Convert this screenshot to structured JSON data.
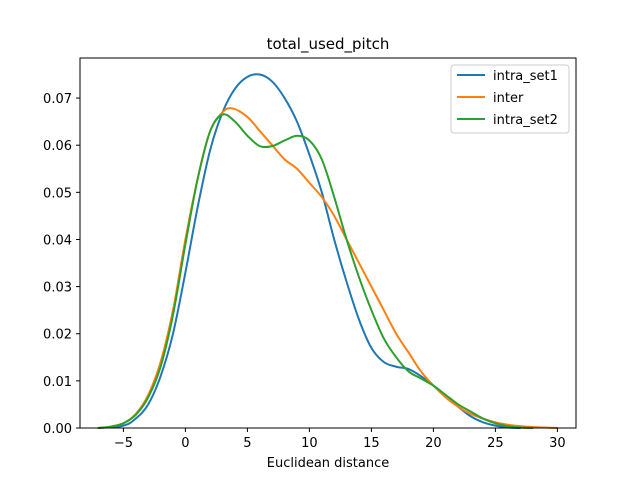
{
  "chart_data": {
    "type": "line",
    "title": "total_used_pitch",
    "xlabel": "Euclidean distance",
    "ylabel": "",
    "xlim": [
      -8.5,
      31.5
    ],
    "ylim": [
      0.0,
      0.0785
    ],
    "xticks": [
      -5,
      0,
      5,
      10,
      15,
      20,
      25,
      30
    ],
    "xtick_labels": [
      "−5",
      "0",
      "5",
      "10",
      "15",
      "20",
      "25",
      "30"
    ],
    "yticks": [
      0.0,
      0.01,
      0.02,
      0.03,
      0.04,
      0.05,
      0.06,
      0.07
    ],
    "ytick_labels": [
      "0.00",
      "0.01",
      "0.02",
      "0.03",
      "0.04",
      "0.05",
      "0.06",
      "0.07"
    ],
    "grid": false,
    "legend_position": "top-right",
    "series": [
      {
        "name": "intra_set1",
        "color": "#1f77b4",
        "points": [
          [
            -7,
            0.0
          ],
          [
            -5,
            0.0005
          ],
          [
            -4,
            0.002
          ],
          [
            -3,
            0.005
          ],
          [
            -2,
            0.011
          ],
          [
            -1,
            0.02
          ],
          [
            0,
            0.033
          ],
          [
            1,
            0.047
          ],
          [
            2,
            0.059
          ],
          [
            3,
            0.067
          ],
          [
            4,
            0.072
          ],
          [
            5,
            0.0745
          ],
          [
            6,
            0.075
          ],
          [
            7,
            0.0735
          ],
          [
            8,
            0.07
          ],
          [
            9,
            0.065
          ],
          [
            10,
            0.058
          ],
          [
            11,
            0.05
          ],
          [
            12,
            0.04
          ],
          [
            13,
            0.031
          ],
          [
            14,
            0.023
          ],
          [
            15,
            0.017
          ],
          [
            16,
            0.014
          ],
          [
            17,
            0.013
          ],
          [
            18,
            0.0125
          ],
          [
            19,
            0.011
          ],
          [
            20,
            0.009
          ],
          [
            21,
            0.0065
          ],
          [
            22,
            0.0045
          ],
          [
            23,
            0.0025
          ],
          [
            24,
            0.0012
          ],
          [
            25,
            0.0005
          ],
          [
            26,
            0.0001
          ],
          [
            27,
            0.0
          ]
        ]
      },
      {
        "name": "inter",
        "color": "#ff7f0e",
        "points": [
          [
            -7,
            0.0
          ],
          [
            -6,
            0.0003
          ],
          [
            -5,
            0.001
          ],
          [
            -4,
            0.003
          ],
          [
            -3,
            0.007
          ],
          [
            -2,
            0.014
          ],
          [
            -1,
            0.025
          ],
          [
            0,
            0.04
          ],
          [
            1,
            0.053
          ],
          [
            2,
            0.063
          ],
          [
            3,
            0.067
          ],
          [
            3.8,
            0.0678
          ],
          [
            5,
            0.066
          ],
          [
            6,
            0.063
          ],
          [
            7,
            0.06
          ],
          [
            8,
            0.057
          ],
          [
            9,
            0.055
          ],
          [
            10,
            0.052
          ],
          [
            11,
            0.049
          ],
          [
            12,
            0.045
          ],
          [
            13,
            0.04
          ],
          [
            14,
            0.035
          ],
          [
            15,
            0.03
          ],
          [
            16,
            0.025
          ],
          [
            17,
            0.02
          ],
          [
            18,
            0.016
          ],
          [
            19,
            0.012
          ],
          [
            20,
            0.009
          ],
          [
            21,
            0.0065
          ],
          [
            22,
            0.0045
          ],
          [
            23,
            0.003
          ],
          [
            24,
            0.002
          ],
          [
            25,
            0.0012
          ],
          [
            26,
            0.0007
          ],
          [
            27,
            0.0004
          ],
          [
            28,
            0.0002
          ],
          [
            29,
            0.0001
          ],
          [
            30,
            0.0
          ]
        ]
      },
      {
        "name": "intra_set2",
        "color": "#2ca02c",
        "points": [
          [
            -7,
            0.0
          ],
          [
            -6,
            0.0003
          ],
          [
            -5,
            0.001
          ],
          [
            -4,
            0.0028
          ],
          [
            -3,
            0.0065
          ],
          [
            -2,
            0.013
          ],
          [
            -1,
            0.024
          ],
          [
            0,
            0.039
          ],
          [
            1,
            0.053
          ],
          [
            2,
            0.063
          ],
          [
            3,
            0.0665
          ],
          [
            4,
            0.065
          ],
          [
            5,
            0.062
          ],
          [
            6,
            0.0598
          ],
          [
            7,
            0.0598
          ],
          [
            8,
            0.061
          ],
          [
            9,
            0.062
          ],
          [
            10,
            0.061
          ],
          [
            11,
            0.057
          ],
          [
            12,
            0.049
          ],
          [
            13,
            0.04
          ],
          [
            14,
            0.032
          ],
          [
            15,
            0.025
          ],
          [
            16,
            0.019
          ],
          [
            17,
            0.015
          ],
          [
            18,
            0.012
          ],
          [
            19,
            0.0105
          ],
          [
            20,
            0.009
          ],
          [
            21,
            0.007
          ],
          [
            22,
            0.005
          ],
          [
            23,
            0.0035
          ],
          [
            24,
            0.002
          ],
          [
            25,
            0.001
          ],
          [
            26,
            0.0004
          ],
          [
            27,
            0.0001
          ],
          [
            28,
            0.0
          ]
        ]
      }
    ]
  }
}
